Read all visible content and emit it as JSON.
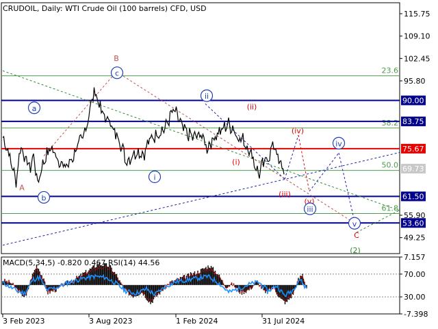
{
  "chart_data": {
    "type": "line",
    "title": "CRUDOIL, Daily:  WTI Crude Oil (100 barrels) CFD, USD",
    "price_axis": {
      "ylim": [
        44.5,
        119.0
      ],
      "ticks": [
        "115.75",
        "109.10",
        "102.45",
        "95.80",
        "90.00",
        "83.75",
        "75.67",
        "69.73",
        "61.50",
        "55.90",
        "53.60",
        "49.25"
      ],
      "tick_values": [
        115.75,
        109.1,
        102.45,
        95.8,
        90.0,
        83.75,
        75.67,
        69.73,
        61.5,
        55.9,
        53.6,
        49.25
      ],
      "tag_color": "#000080"
    },
    "x_axis": {
      "ticks": [
        "3 Feb 2023",
        "3 Aug 2023",
        "1 Feb 2024",
        "31 Jul 2024"
      ],
      "tick_index": [
        0,
        126,
        253,
        379
      ],
      "xlim": [
        0,
        640
      ]
    },
    "price_series": {
      "name": "CRUDOIL",
      "anchors": [
        [
          0,
          79
        ],
        [
          8,
          75
        ],
        [
          14,
          70
        ],
        [
          20,
          66
        ],
        [
          26,
          77
        ],
        [
          32,
          73
        ],
        [
          40,
          70
        ],
        [
          46,
          74
        ],
        [
          50,
          65
        ],
        [
          60,
          72
        ],
        [
          70,
          76
        ],
        [
          80,
          73
        ],
        [
          90,
          70
        ],
        [
          100,
          72
        ],
        [
          110,
          77
        ],
        [
          116,
          78
        ],
        [
          124,
          84
        ],
        [
          130,
          90
        ],
        [
          136,
          93
        ],
        [
          140,
          89
        ],
        [
          146,
          86
        ],
        [
          152,
          84
        ],
        [
          156,
          85
        ],
        [
          162,
          80
        ],
        [
          168,
          80
        ],
        [
          176,
          75
        ],
        [
          180,
          72
        ],
        [
          186,
          73
        ],
        [
          196,
          75
        ],
        [
          206,
          74
        ],
        [
          214,
          78
        ],
        [
          224,
          80
        ],
        [
          232,
          81
        ],
        [
          238,
          82
        ],
        [
          244,
          85
        ],
        [
          250,
          87
        ],
        [
          256,
          85
        ],
        [
          262,
          82
        ],
        [
          270,
          80
        ],
        [
          280,
          79
        ],
        [
          290,
          80
        ],
        [
          298,
          76
        ],
        [
          306,
          78
        ],
        [
          312,
          80
        ],
        [
          320,
          81
        ],
        [
          328,
          83
        ],
        [
          336,
          82
        ],
        [
          344,
          79
        ],
        [
          352,
          78
        ],
        [
          358,
          76
        ],
        [
          364,
          74
        ],
        [
          370,
          70
        ],
        [
          374,
          68
        ],
        [
          378,
          70
        ],
        [
          384,
          72
        ],
        [
          390,
          74
        ],
        [
          396,
          77
        ],
        [
          400,
          75
        ],
        [
          404,
          71
        ],
        [
          412,
          69.7
        ]
      ]
    },
    "horizontal_levels": [
      {
        "value": 90.0,
        "label": "90.00",
        "color": "#00008b",
        "tagged": true
      },
      {
        "value": 83.75,
        "label": "83.75",
        "color": "#00008b",
        "tagged": true
      },
      {
        "value": 75.67,
        "label": "75.67",
        "color": "#e60000",
        "tagged": true
      },
      {
        "value": 61.5,
        "label": "61.50",
        "color": "#00008b",
        "tagged": true
      },
      {
        "value": 53.6,
        "label": "53.60",
        "color": "#00008b",
        "tagged": true
      }
    ],
    "fib_levels": [
      {
        "value": 97.3,
        "label": "23.6"
      },
      {
        "value": 81.8,
        "label": "38.2"
      },
      {
        "value": 69.2,
        "label": "50.0"
      },
      {
        "value": 56.4,
        "label": "61.8"
      }
    ],
    "current_price": {
      "value": 69.73,
      "label": "69.73"
    },
    "wave_labels": [
      {
        "label": "A",
        "x": 32,
        "y": 64.2,
        "color": "#c0504d",
        "circled": false
      },
      {
        "label": "a",
        "x": 50,
        "y": 87.8,
        "color": "#1f3fbf",
        "circled": true
      },
      {
        "label": "b",
        "x": 64,
        "y": 61.2,
        "color": "#1f3fbf",
        "circled": true
      },
      {
        "label": "B",
        "x": 170,
        "y": 102.6,
        "color": "#c0504d",
        "circled": false
      },
      {
        "label": "c",
        "x": 171,
        "y": 98.2,
        "color": "#1f3fbf",
        "circled": true
      },
      {
        "label": "i",
        "x": 226,
        "y": 67.3,
        "color": "#1f3fbf",
        "circled": true
      },
      {
        "label": "ii",
        "x": 302,
        "y": 91.4,
        "color": "#1f3fbf",
        "circled": true
      },
      {
        "label": "(i)",
        "x": 345,
        "y": 71.9,
        "color": "#e60000",
        "circled": false
      },
      {
        "label": "(ii)",
        "x": 368,
        "y": 88.3,
        "color": "#e60000",
        "circled": false
      },
      {
        "label": "(iii)",
        "x": 416,
        "y": 62.3,
        "color": "#e60000",
        "circled": false
      },
      {
        "label": "(iv)",
        "x": 435,
        "y": 81.1,
        "color": "#e60000",
        "circled": false
      },
      {
        "label": "(v)",
        "x": 452,
        "y": 60.2,
        "color": "#e60000",
        "circled": false
      },
      {
        "label": "iii",
        "x": 453,
        "y": 57.8,
        "color": "#1f3fbf",
        "circled": true
      },
      {
        "label": "iv",
        "x": 495,
        "y": 77.3,
        "color": "#1f3fbf",
        "circled": true
      },
      {
        "label": "v",
        "x": 518,
        "y": 53.5,
        "color": "#1f3fbf",
        "circled": true
      },
      {
        "label": "C",
        "x": 521,
        "y": 50.1,
        "color": "#e60000",
        "circled": false
      },
      {
        "label": "(2)",
        "x": 519,
        "y": 45.6,
        "color": "#2e8b2e",
        "circled": false
      }
    ],
    "trend_lines": [
      {
        "from": [
          4,
          98.8
        ],
        "to": [
          640,
          53.3
        ],
        "color": "#2e8b2e",
        "dash": true
      },
      {
        "from": [
          4,
          47.0
        ],
        "to": [
          640,
          77.2
        ],
        "color": "#2020a0",
        "dash": true
      },
      {
        "from": [
          64,
          73.5
        ],
        "to": [
          170,
          98.5
        ],
        "color": "#c0504d",
        "dash": true
      },
      {
        "from": [
          170,
          98.5
        ],
        "to": [
          521,
          53.2
        ],
        "color": "#c0504d",
        "dash": true
      },
      {
        "from": [
          300,
          89.0
        ],
        "to": [
          416,
          66.6
        ],
        "color": "#2020a0",
        "dash": true
      },
      {
        "from": [
          416,
          66.6
        ],
        "to": [
          436,
          79.7
        ],
        "color": "#2020a0",
        "dash": true
      },
      {
        "from": [
          436,
          79.7
        ],
        "to": [
          452,
          63.0
        ],
        "color": "#e60000",
        "dash": true
      },
      {
        "from": [
          452,
          63.0
        ],
        "to": [
          495,
          74.4
        ],
        "color": "#2020a0",
        "dash": true
      },
      {
        "from": [
          495,
          74.4
        ],
        "to": [
          518,
          54.1
        ],
        "color": "#2020a0",
        "dash": true
      },
      {
        "from": [
          521,
          50.8
        ],
        "to": [
          584,
          57.4
        ],
        "color": "#2e8b2e",
        "dash": true
      }
    ],
    "indicator": {
      "title": "MACD(5,34,5) -0.820 0.467 RSI(14) 44.56",
      "ticks": [
        "7.157",
        "70.00",
        "30.00",
        "-7.398"
      ],
      "tick_values": [
        7.157,
        70.0,
        30.0,
        -7.398
      ],
      "ylim": [
        -7.398,
        7.157
      ],
      "macd_anchors": [
        [
          0,
          1.2
        ],
        [
          12,
          0.6
        ],
        [
          24,
          -1.8
        ],
        [
          34,
          -3.2
        ],
        [
          42,
          2.0
        ],
        [
          50,
          5.2
        ],
        [
          58,
          2.2
        ],
        [
          66,
          -2.0
        ],
        [
          78,
          -1.2
        ],
        [
          92,
          0.4
        ],
        [
          108,
          1.8
        ],
        [
          124,
          3.6
        ],
        [
          140,
          5.4
        ],
        [
          156,
          4.9
        ],
        [
          166,
          2.6
        ],
        [
          178,
          -1.4
        ],
        [
          190,
          -2.8
        ],
        [
          204,
          -1.8
        ],
        [
          216,
          -4.6
        ],
        [
          228,
          -2.2
        ],
        [
          244,
          0.6
        ],
        [
          258,
          1.6
        ],
        [
          272,
          2.5
        ],
        [
          288,
          3.6
        ],
        [
          302,
          5.0
        ],
        [
          314,
          3.0
        ],
        [
          326,
          -0.4
        ],
        [
          336,
          0.2
        ],
        [
          348,
          -2.0
        ],
        [
          360,
          -1.2
        ],
        [
          372,
          0.9
        ],
        [
          384,
          -2.2
        ],
        [
          396,
          -0.6
        ],
        [
          406,
          -3.6
        ],
        [
          414,
          -4.6
        ],
        [
          424,
          -2.4
        ],
        [
          432,
          1.4
        ],
        [
          438,
          2.8
        ],
        [
          444,
          -0.8
        ]
      ],
      "rsi_anchors": [
        [
          0,
          55
        ],
        [
          10,
          48
        ],
        [
          22,
          40
        ],
        [
          32,
          36
        ],
        [
          44,
          60
        ],
        [
          54,
          64
        ],
        [
          64,
          42
        ],
        [
          78,
          46
        ],
        [
          96,
          55
        ],
        [
          116,
          62
        ],
        [
          134,
          66
        ],
        [
          150,
          64
        ],
        [
          164,
          55
        ],
        [
          180,
          40
        ],
        [
          194,
          36
        ],
        [
          210,
          44
        ],
        [
          222,
          34
        ],
        [
          238,
          48
        ],
        [
          252,
          56
        ],
        [
          270,
          60
        ],
        [
          286,
          63
        ],
        [
          300,
          66
        ],
        [
          316,
          54
        ],
        [
          330,
          38
        ],
        [
          344,
          44
        ],
        [
          360,
          52
        ],
        [
          374,
          56
        ],
        [
          388,
          40
        ],
        [
          400,
          50
        ],
        [
          412,
          32
        ],
        [
          424,
          42
        ],
        [
          434,
          62
        ],
        [
          440,
          50
        ],
        [
          444,
          45
        ]
      ]
    }
  }
}
